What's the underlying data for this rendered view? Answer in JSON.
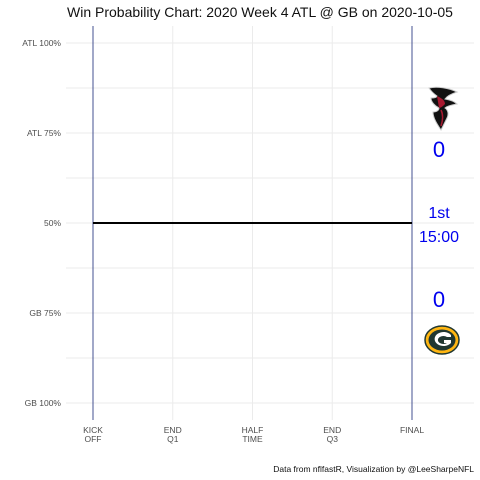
{
  "chart_data": {
    "type": "line",
    "title": "Win Probability Chart: 2020 Week 4 ATL @ GB on 2020-10-05",
    "caption": "Data from nflfastR, Visualization by @LeeSharpeNFL",
    "x_ticks": [
      {
        "value": 0,
        "lines": [
          "KICK",
          "OFF"
        ]
      },
      {
        "value": 0.25,
        "lines": [
          "END",
          "Q1"
        ]
      },
      {
        "value": 0.5,
        "lines": [
          "HALF",
          "TIME"
        ]
      },
      {
        "value": 0.75,
        "lines": [
          "END",
          "Q3"
        ]
      },
      {
        "value": 1,
        "lines": [
          "FINAL"
        ]
      }
    ],
    "y_ticks": [
      {
        "value": 1.0,
        "label": "ATL 100%"
      },
      {
        "value": 0.75,
        "label": "ATL 75%"
      },
      {
        "value": 0.5,
        "label": "50%"
      },
      {
        "value": 0.25,
        "label": "GB 75%"
      },
      {
        "value": 0.0,
        "label": "GB 100%"
      }
    ],
    "xlim": [
      0,
      1
    ],
    "ylim": [
      0,
      1
    ],
    "grid": true,
    "series": [
      {
        "x": [
          0,
          1
        ],
        "y": [
          0.5,
          0.5
        ],
        "color": "#000000"
      }
    ],
    "annotations": {
      "away_score": "0",
      "home_score": "0",
      "quarter": "1st",
      "clock": "15:00",
      "text_color": "#0000ee"
    },
    "logos": {
      "away": "falcons-logo",
      "home": "packers-logo"
    },
    "colors": {
      "axis_line": "#1a2a7a",
      "grid": "#ebebeb",
      "wp_line": "#000000"
    }
  }
}
